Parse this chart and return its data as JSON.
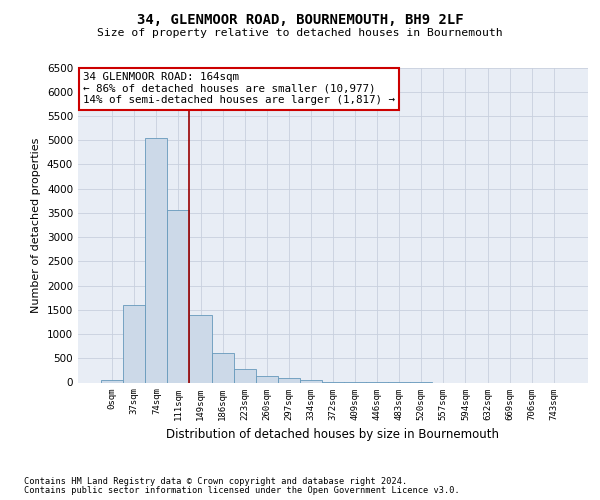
{
  "title": "34, GLENMOOR ROAD, BOURNEMOUTH, BH9 2LF",
  "subtitle": "Size of property relative to detached houses in Bournemouth",
  "xlabel": "Distribution of detached houses by size in Bournemouth",
  "ylabel": "Number of detached properties",
  "bar_labels": [
    "0sqm",
    "37sqm",
    "74sqm",
    "111sqm",
    "149sqm",
    "186sqm",
    "223sqm",
    "260sqm",
    "297sqm",
    "334sqm",
    "372sqm",
    "409sqm",
    "446sqm",
    "483sqm",
    "520sqm",
    "557sqm",
    "594sqm",
    "632sqm",
    "669sqm",
    "706sqm",
    "743sqm"
  ],
  "bar_values": [
    50,
    1600,
    5050,
    3550,
    1400,
    600,
    270,
    130,
    90,
    50,
    20,
    5,
    3,
    2,
    1,
    0,
    0,
    0,
    0,
    0,
    0
  ],
  "bar_color": "#ccd9e8",
  "bar_edge_color": "#6699bb",
  "vline_x": 3.5,
  "vline_color": "#990000",
  "annotation_title": "34 GLENMOOR ROAD: 164sqm",
  "annotation_line1": "← 86% of detached houses are smaller (10,977)",
  "annotation_line2": "14% of semi-detached houses are larger (1,817) →",
  "annotation_box_color": "#cc0000",
  "ylim": [
    0,
    6500
  ],
  "yticks": [
    0,
    500,
    1000,
    1500,
    2000,
    2500,
    3000,
    3500,
    4000,
    4500,
    5000,
    5500,
    6000,
    6500
  ],
  "grid_color": "#c8d0de",
  "background_color": "#e8edf5",
  "footer_line1": "Contains HM Land Registry data © Crown copyright and database right 2024.",
  "footer_line2": "Contains public sector information licensed under the Open Government Licence v3.0."
}
